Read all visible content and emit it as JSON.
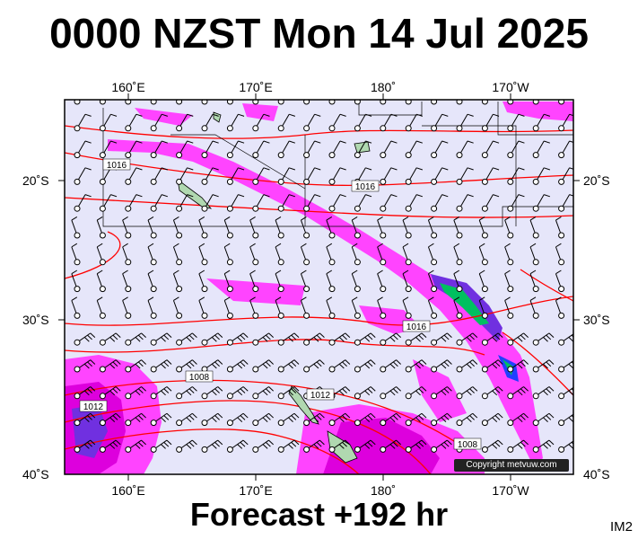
{
  "title": "0000 NZST Mon 14 Jul 2025",
  "footer": "Forecast +192 hr",
  "code": "IM2",
  "copyright": "Copyright metvuw.com",
  "lon_labels_top": [
    "160˚E",
    "170˚E",
    "180˚",
    "170˚W"
  ],
  "lon_labels_bottom": [
    "160˚E",
    "170˚E",
    "180˚",
    "170˚W"
  ],
  "lat_labels_left": [
    "20˚S",
    "30˚S",
    "40˚S"
  ],
  "lat_labels_right": [
    "20˚S",
    "30˚S",
    "40˚S"
  ],
  "isobar_labels": [
    "1016",
    "1016",
    "1016",
    "1008",
    "1012",
    "1012",
    "1008"
  ],
  "colors": {
    "ocean": "#e6e6fa",
    "isobar": "#ff0000",
    "rain_light": "#ff44ff",
    "rain_moderate": "#dd00dd",
    "rain_heavy": "#7030e0",
    "rain_very_heavy": "#2040ff",
    "rain_extreme": "#00c060",
    "land": "#b0d8b0"
  }
}
